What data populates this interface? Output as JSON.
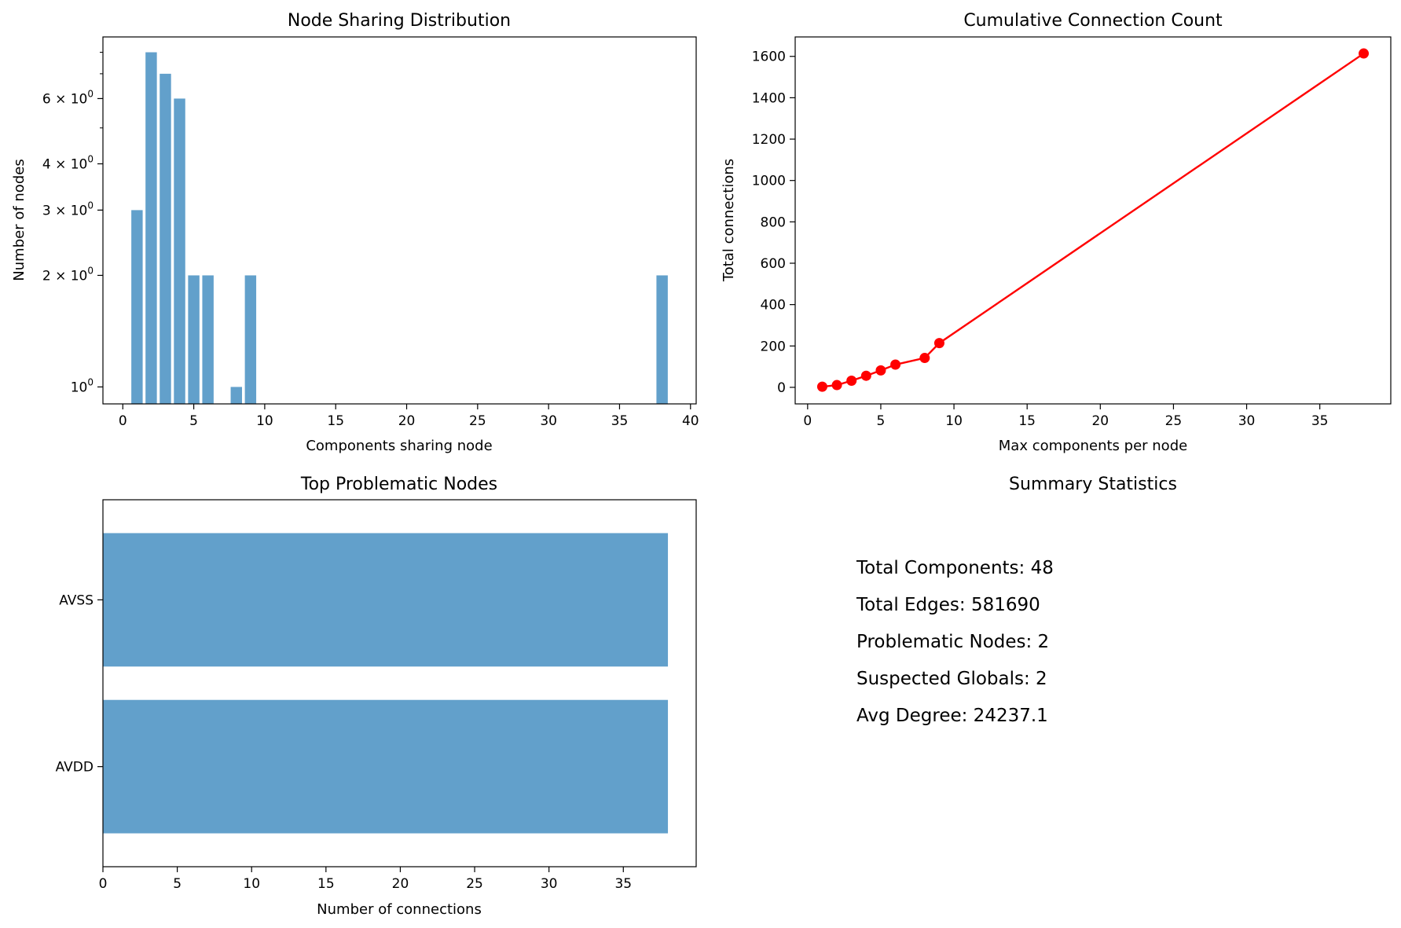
{
  "chart_data": [
    {
      "type": "bar",
      "title": "Node Sharing Distribution",
      "xlabel": "Components sharing node",
      "ylabel": "Number of nodes",
      "yscale": "log",
      "x": [
        1,
        2,
        3,
        4,
        5,
        6,
        8,
        9,
        38
      ],
      "values": [
        3,
        8,
        7,
        6,
        2,
        2,
        1,
        2,
        2
      ],
      "xlim": [
        -1.4,
        40.4
      ],
      "ylim": [
        0.9,
        8.8
      ],
      "xticks": [
        "0",
        "5",
        "10",
        "15",
        "20",
        "25",
        "30",
        "35",
        "40"
      ],
      "yticks": [
        {
          "value": 1,
          "base": "10",
          "exp": "0"
        },
        {
          "value": 2,
          "base": "2 × 10",
          "exp": "0"
        },
        {
          "value": 3,
          "base": "3 × 10",
          "exp": "0"
        },
        {
          "value": 4,
          "base": "4 × 10",
          "exp": "0"
        },
        {
          "value": 6,
          "base": "6 × 10",
          "exp": "0"
        }
      ],
      "color": "#62a0cb"
    },
    {
      "type": "line",
      "title": "Cumulative Connection Count",
      "xlabel": "Max components per node",
      "ylabel": "Total connections",
      "x": [
        1,
        2,
        3,
        4,
        5,
        6,
        8,
        9,
        38
      ],
      "y": [
        3,
        11,
        32,
        56,
        82,
        110,
        142,
        214,
        1614
      ],
      "xlim": [
        -0.85,
        39.85
      ],
      "ylim": [
        -80,
        1694
      ],
      "xticks": [
        "0",
        "5",
        "10",
        "15",
        "20",
        "25",
        "30",
        "35"
      ],
      "yticks": [
        "0",
        "200",
        "400",
        "600",
        "800",
        "1000",
        "1200",
        "1400",
        "1600"
      ],
      "color": "#ff0000"
    },
    {
      "type": "barh",
      "title": "Top Problematic Nodes",
      "xlabel": "Number of connections",
      "categories": [
        "AVSS",
        "AVDD"
      ],
      "values": [
        38,
        38
      ],
      "xlim": [
        0,
        39.9
      ],
      "xticks": [
        "0",
        "5",
        "10",
        "15",
        "20",
        "25",
        "30",
        "35"
      ],
      "color": "#62a0cb"
    }
  ],
  "summary": {
    "title": "Summary Statistics",
    "lines": [
      "Total Components: 48",
      "Total Edges: 581690",
      "Problematic Nodes: 2",
      "Suspected Globals: 2",
      "Avg Degree: 24237.1"
    ]
  }
}
